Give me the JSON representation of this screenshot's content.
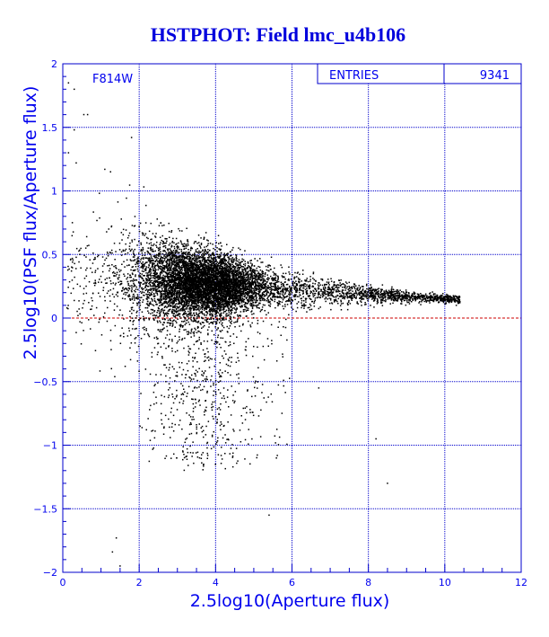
{
  "colors": {
    "frame": "#0000cc",
    "text": "#0000ee",
    "title": "#0000dd",
    "points": "#000000",
    "zero_line": "#cc0000",
    "background": "#ffffff"
  },
  "chart_data": {
    "type": "scatter",
    "title": "HSTPHOT: Field lmc_u4b106",
    "xlabel": "2.5log10(Aperture flux)",
    "ylabel": "2.5log10(PSF flux/Aperture flux)",
    "xlim": [
      0,
      12
    ],
    "ylim": [
      -2,
      2
    ],
    "x_ticks": [
      "0",
      "2",
      "4",
      "6",
      "8",
      "10",
      "12"
    ],
    "y_ticks": [
      "-2",
      "-1.5",
      "-1",
      "-0.5",
      "0",
      "0.5",
      "1",
      "1.5",
      "2"
    ],
    "grid": true,
    "annotation": "F814W",
    "reference_line_y": 0,
    "stats": {
      "label": "ENTRIES",
      "value": "9341"
    },
    "distribution": {
      "entries": 9341,
      "x_range": [
        0.1,
        10.4
      ],
      "x_peak": 3.6,
      "y_center_at_x2": 0.3,
      "y_center_at_x10": 0.15,
      "y_sigma_faint": 0.3,
      "y_sigma_bright": 0.03,
      "negative_tail_x": [
        2,
        6
      ],
      "negative_tail_y": [
        -1.2,
        0
      ]
    },
    "sample_points": [
      {
        "x": 0.15,
        "y": 1.85
      },
      {
        "x": 0.3,
        "y": 1.8
      },
      {
        "x": 0.55,
        "y": 1.6
      },
      {
        "x": 0.65,
        "y": 1.6
      },
      {
        "x": 0.3,
        "y": 1.48
      },
      {
        "x": 0.35,
        "y": 1.22
      },
      {
        "x": 1.1,
        "y": 1.17
      },
      {
        "x": 1.25,
        "y": 1.15
      },
      {
        "x": 1.8,
        "y": 1.42
      },
      {
        "x": 0.15,
        "y": 1.3
      },
      {
        "x": 1.4,
        "y": -1.73
      },
      {
        "x": 1.3,
        "y": -1.84
      },
      {
        "x": 1.5,
        "y": -1.95
      },
      {
        "x": 9.2,
        "y": 0.2
      },
      {
        "x": 9.8,
        "y": 0.16
      },
      {
        "x": 10.3,
        "y": 0.1
      },
      {
        "x": 8.2,
        "y": -0.95
      },
      {
        "x": 8.5,
        "y": -1.3
      },
      {
        "x": 6.7,
        "y": -0.55
      },
      {
        "x": 5.4,
        "y": -1.55
      }
    ]
  }
}
